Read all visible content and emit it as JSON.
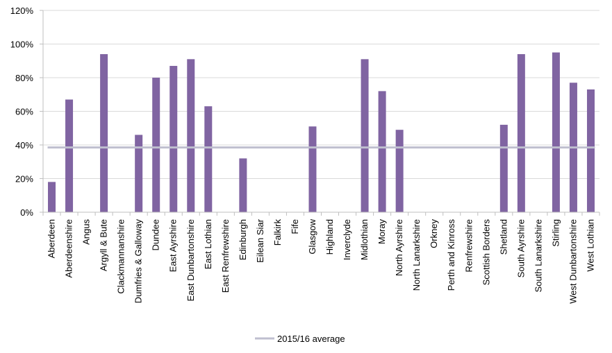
{
  "chart_data": {
    "type": "bar",
    "title": "",
    "xlabel": "",
    "ylabel": "",
    "ylim": [
      0,
      120
    ],
    "yticks": [
      "0%",
      "20%",
      "40%",
      "60%",
      "80%",
      "100%",
      "120%"
    ],
    "ytick_values": [
      0,
      20,
      40,
      60,
      80,
      100,
      120
    ],
    "grid": true,
    "legend_position": "bottom",
    "categories": [
      "Aberdeen",
      "Aberdeenshire",
      "Angus",
      "Argyll & Bute",
      "Clackmannanshire",
      "Dumfries & Galloway",
      "Dundee",
      "East Ayrshire",
      "East Dunbartonshire",
      "East Lothian",
      "East Renfrewshire",
      "Edinburgh",
      "Eilean Siar",
      "Falkirk",
      "Fife",
      "Glasgow",
      "Highland",
      "Inverclyde",
      "Midlothian",
      "Moray",
      "North Ayrshire",
      "North Lanarkshire",
      "Orkney",
      "Perth and Kinross",
      "Renfrewshire",
      "Scottish Borders",
      "Shetland",
      "South Ayrshire",
      "South Lanarkshire",
      "Stirling",
      "West Dunbartonshire",
      "West Lothian"
    ],
    "series": [
      {
        "values": [
          18,
          67,
          0,
          94,
          0,
          46,
          80,
          87,
          91,
          63,
          0,
          32,
          0,
          0,
          0,
          51,
          0,
          0,
          91,
          72,
          49,
          0,
          0,
          0,
          0,
          0,
          52,
          94,
          0,
          95,
          77,
          73
        ],
        "color": "#8064a2"
      }
    ],
    "reference_line": {
      "name": "2015/16 average",
      "value": 38.5,
      "color": "#bfbfcf"
    }
  }
}
